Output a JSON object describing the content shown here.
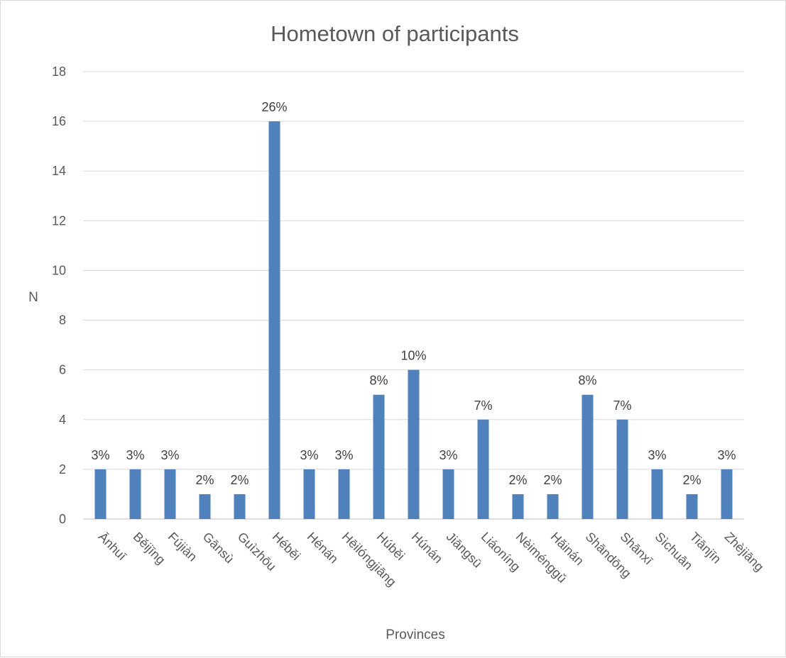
{
  "chart_data": {
    "type": "bar",
    "title": "Hometown of participants",
    "xlabel": "Provinces",
    "ylabel": "N",
    "ylim": [
      0,
      18
    ],
    "y_ticks": [
      0,
      2,
      4,
      6,
      8,
      10,
      12,
      14,
      16,
      18
    ],
    "grid": true,
    "legend": "none",
    "bar_color": "#4f81bd",
    "categories": [
      "Ānhuī",
      "Běijīng",
      "Fújiàn",
      "Gānsù",
      "Guìzhōu",
      "Héběi",
      "Hénán",
      "Hēilóngjiāng",
      "Húběi",
      "Húnán",
      "Jiāngsū",
      "Liáoníng",
      "Nèiménggǔ",
      "Hǎinán",
      "Shāndōng",
      "Shānxī",
      "Sìchuān",
      "Tiānjīn",
      "Zhèjiāng"
    ],
    "values": [
      2,
      2,
      2,
      1,
      1,
      16,
      2,
      2,
      5,
      6,
      2,
      4,
      1,
      1,
      5,
      4,
      2,
      1,
      2
    ],
    "data_labels": [
      "3%",
      "3%",
      "3%",
      "2%",
      "2%",
      "26%",
      "3%",
      "3%",
      "8%",
      "10%",
      "3%",
      "7%",
      "2%",
      "2%",
      "8%",
      "7%",
      "3%",
      "2%",
      "3%"
    ]
  }
}
